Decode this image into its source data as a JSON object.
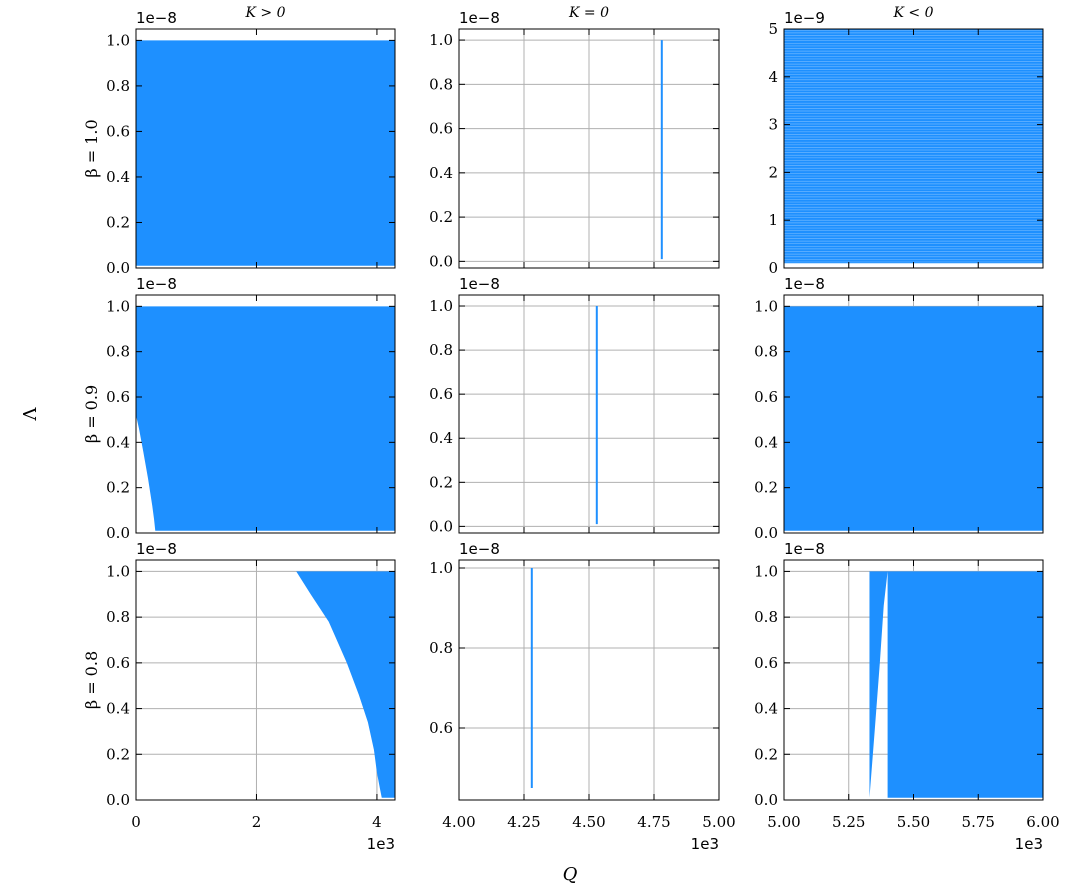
{
  "figure": {
    "xlabel": "Q",
    "ylabel": "Λ",
    "col_titles": [
      "K > 0",
      "K = 0",
      "K < 0"
    ],
    "row_labels": [
      "β = 1.0",
      "β = 0.9",
      "β = 0.8"
    ],
    "fill_color": "#1e90ff",
    "grid_color": "#b0b0b0"
  },
  "chart_data": [
    {
      "row": 0,
      "col": 0,
      "type": "area",
      "xlim": [
        0,
        4.3
      ],
      "ylim": [
        0,
        1.05
      ],
      "y_exponent": "1e−8",
      "xticks": [],
      "yticks": [
        0.0,
        0.2,
        0.4,
        0.6,
        0.8,
        1.0
      ],
      "ytick_labels": [
        "0.0",
        "0.2",
        "0.4",
        "0.6",
        "0.8",
        "1.0"
      ],
      "grid": false,
      "region": {
        "x_left": [
          0,
          0
        ],
        "x_right": [
          4.3,
          4.3
        ],
        "y": [
          0.01,
          1.0
        ]
      }
    },
    {
      "row": 0,
      "col": 1,
      "type": "line",
      "xlim": [
        4.0,
        5.0
      ],
      "ylim": [
        -0.03,
        1.05
      ],
      "y_exponent": "1e−8",
      "xticks": [
        4.0,
        4.25,
        4.5,
        4.75,
        5.0
      ],
      "yticks": [
        0.0,
        0.2,
        0.4,
        0.6,
        0.8,
        1.0
      ],
      "ytick_labels": [
        "0.0",
        "0.2",
        "0.4",
        "0.6",
        "0.8",
        "1.0"
      ],
      "grid": true,
      "line": {
        "x": 4.78,
        "y": [
          0.01,
          1.0
        ]
      }
    },
    {
      "row": 0,
      "col": 2,
      "type": "area",
      "xlim": [
        5.0,
        6.0
      ],
      "ylim": [
        0,
        5.0
      ],
      "y_exponent": "1e−9",
      "xticks": [
        5.0,
        5.25,
        5.5,
        5.75,
        6.0
      ],
      "yticks": [
        0,
        1,
        2,
        3,
        4,
        5
      ],
      "ytick_labels": [
        "0",
        "1",
        "2",
        "3",
        "4",
        "5"
      ],
      "grid": true,
      "region": {
        "x_left": [
          5.0,
          5.0
        ],
        "x_right": [
          6.0,
          6.0
        ],
        "y": [
          0.1,
          5.0
        ]
      },
      "striped": true
    },
    {
      "row": 1,
      "col": 0,
      "type": "area",
      "xlim": [
        0,
        4.3
      ],
      "ylim": [
        0,
        1.05
      ],
      "y_exponent": "1e−8",
      "xticks": [],
      "yticks": [
        0.0,
        0.2,
        0.4,
        0.6,
        0.8,
        1.0
      ],
      "ytick_labels": [
        "0.0",
        "0.2",
        "0.4",
        "0.6",
        "0.8",
        "1.0"
      ],
      "grid": false,
      "boundary": {
        "x": [
          0.0,
          0.05,
          0.12,
          0.2,
          0.27,
          0.3,
          0.32
        ],
        "y": [
          0.52,
          0.46,
          0.36,
          0.24,
          0.12,
          0.06,
          0.01
        ]
      },
      "x_right": 4.3,
      "y_top": 1.0,
      "y_bottom": 0.01
    },
    {
      "row": 1,
      "col": 1,
      "type": "line",
      "xlim": [
        4.0,
        5.0
      ],
      "ylim": [
        -0.03,
        1.05
      ],
      "y_exponent": "1e−8",
      "xticks": [
        4.0,
        4.25,
        4.5,
        4.75,
        5.0
      ],
      "yticks": [
        0.0,
        0.2,
        0.4,
        0.6,
        0.8,
        1.0
      ],
      "ytick_labels": [
        "0.0",
        "0.2",
        "0.4",
        "0.6",
        "0.8",
        "1.0"
      ],
      "grid": true,
      "line": {
        "x": 4.53,
        "y": [
          0.01,
          1.0
        ]
      }
    },
    {
      "row": 1,
      "col": 2,
      "type": "area",
      "xlim": [
        5.0,
        6.0
      ],
      "ylim": [
        0,
        1.05
      ],
      "y_exponent": "1e−8",
      "xticks": [
        5.0,
        5.25,
        5.5,
        5.75,
        6.0
      ],
      "yticks": [
        0.0,
        0.2,
        0.4,
        0.6,
        0.8,
        1.0
      ],
      "ytick_labels": [
        "0.0",
        "0.2",
        "0.4",
        "0.6",
        "0.8",
        "1.0"
      ],
      "grid": true,
      "region": {
        "x_left": [
          5.0,
          5.0
        ],
        "x_right": [
          6.0,
          6.0
        ],
        "y": [
          0.01,
          1.0
        ]
      }
    },
    {
      "row": 2,
      "col": 0,
      "type": "area",
      "xlim": [
        0,
        4.3
      ],
      "ylim": [
        0,
        1.05
      ],
      "y_exponent": "1e−8",
      "xticks": [
        0,
        2,
        4
      ],
      "xtick_labels": [
        "0",
        "2",
        "4"
      ],
      "x_exponent": "1e3",
      "yticks": [
        0.0,
        0.2,
        0.4,
        0.6,
        0.8,
        1.0
      ],
      "ytick_labels": [
        "0.0",
        "0.2",
        "0.4",
        "0.6",
        "0.8",
        "1.0"
      ],
      "grid": true,
      "boundary": {
        "x": [
          2.66,
          2.9,
          3.2,
          3.5,
          3.7,
          3.85,
          3.95,
          4.0,
          4.05,
          4.08
        ],
        "y": [
          1.0,
          0.9,
          0.78,
          0.6,
          0.46,
          0.34,
          0.22,
          0.12,
          0.05,
          0.01
        ]
      },
      "x_right": 4.3,
      "y_top": 1.0,
      "y_bottom": 0.01
    },
    {
      "row": 2,
      "col": 1,
      "type": "line",
      "xlim": [
        4.0,
        5.0
      ],
      "ylim": [
        0.42,
        1.02
      ],
      "y_exponent": "1e−8",
      "xticks": [
        4.0,
        4.25,
        4.5,
        4.75,
        5.0
      ],
      "xtick_labels": [
        "4.00",
        "4.25",
        "4.50",
        "4.75",
        "5.00"
      ],
      "x_exponent": "1e3",
      "yticks": [
        0.6,
        0.8,
        1.0
      ],
      "ytick_labels": [
        "0.6",
        "0.8",
        "1.0"
      ],
      "grid": true,
      "line": {
        "x": 4.28,
        "y": [
          0.45,
          1.0
        ]
      }
    },
    {
      "row": 2,
      "col": 2,
      "type": "area",
      "xlim": [
        5.0,
        6.0
      ],
      "ylim": [
        0,
        1.05
      ],
      "y_exponent": "1e−8",
      "xticks": [
        5.0,
        5.25,
        5.5,
        5.75,
        6.0
      ],
      "xtick_labels": [
        "5.00",
        "5.25",
        "5.50",
        "5.75",
        "6.00"
      ],
      "x_exponent": "1e3",
      "yticks": [
        0.0,
        0.2,
        0.4,
        0.6,
        0.8,
        1.0
      ],
      "ytick_labels": [
        "0.0",
        "0.2",
        "0.4",
        "0.6",
        "0.8",
        "1.0"
      ],
      "grid": true,
      "boundary": {
        "x": [
          5.33,
          5.35,
          5.37,
          5.385,
          5.4
        ],
        "y": [
          0.01,
          0.3,
          0.6,
          0.85,
          1.0
        ]
      },
      "x_right": 6.0,
      "y_top": 1.0,
      "y_bottom": 0.01
    }
  ]
}
